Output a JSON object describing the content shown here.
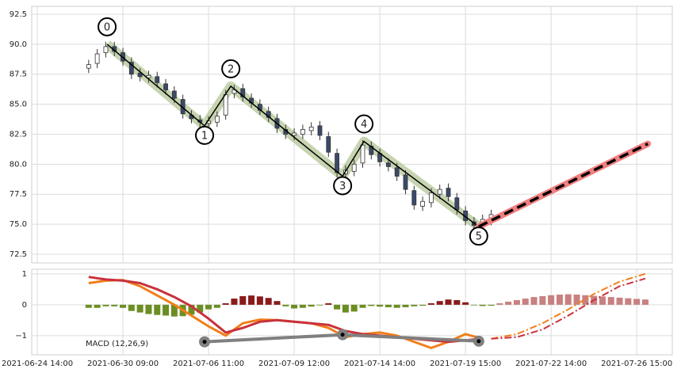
{
  "chart_data": [
    {
      "type": "candlestick",
      "xlim": [
        -1.3,
        148.3
      ],
      "ylim": [
        71.77,
        93.16
      ],
      "yticks": [
        72.5,
        {
          "value": 75,
          "label": "75.0"
        },
        77.5,
        {
          "value": 80,
          "label": "80.0"
        },
        82.5,
        {
          "value": 85,
          "label": "85.0"
        },
        87.5,
        {
          "value": 90,
          "label": "90.0"
        },
        92.5
      ],
      "grid": true,
      "x": [
        12,
        14,
        16,
        18,
        20,
        22,
        24,
        26,
        28,
        30,
        32,
        34,
        36,
        38,
        40,
        42,
        44,
        46,
        48,
        50,
        52,
        54,
        56,
        58,
        60,
        62,
        64,
        66,
        68,
        70,
        72,
        74,
        76,
        78,
        80,
        82,
        84,
        86,
        88,
        90,
        92,
        94,
        96,
        98,
        100,
        102,
        104,
        106
      ],
      "open": [
        88.0,
        88.4,
        89.3,
        89.8,
        89.3,
        88.5,
        87.6,
        87.2,
        87.3,
        86.7,
        86.1,
        85.4,
        84.1,
        83.7,
        83.4,
        83.5,
        84.1,
        85.9,
        86.3,
        85.5,
        85.0,
        84.4,
        83.8,
        82.9,
        82.4,
        82.5,
        82.8,
        83.2,
        82.3,
        80.9,
        79.2,
        79.4,
        80.1,
        81.5,
        80.9,
        80.1,
        79.7,
        79.1,
        77.8,
        76.5,
        76.8,
        77.5,
        78.0,
        77.2,
        76.1,
        75.2,
        74.8,
        75.3
      ],
      "high": [
        88.7,
        89.6,
        90.2,
        90.2,
        89.7,
        88.9,
        88.0,
        87.8,
        87.7,
        87.1,
        86.5,
        85.8,
        84.5,
        84.1,
        84.0,
        84.4,
        86.2,
        86.6,
        86.7,
        85.9,
        85.4,
        84.8,
        84.2,
        83.3,
        83.0,
        83.3,
        83.5,
        83.6,
        82.7,
        81.3,
        79.9,
        80.4,
        82.0,
        81.9,
        81.3,
        80.5,
        80.1,
        79.5,
        78.2,
        77.3,
        78.0,
        78.3,
        78.4,
        77.6,
        76.5,
        75.6,
        75.8,
        76.2
      ],
      "low": [
        87.6,
        88.0,
        88.9,
        89.0,
        88.2,
        87.1,
        86.9,
        86.8,
        86.4,
        85.8,
        85.1,
        83.8,
        83.4,
        83.1,
        83.0,
        83.1,
        83.7,
        85.5,
        85.2,
        84.7,
        84.1,
        83.5,
        82.6,
        82.1,
        82.0,
        82.1,
        82.4,
        82.0,
        80.6,
        78.9,
        78.8,
        79.0,
        79.7,
        80.4,
        79.8,
        79.4,
        78.6,
        77.5,
        76.2,
        76.1,
        76.4,
        77.1,
        76.9,
        75.8,
        74.9,
        74.5,
        74.4,
        74.9
      ],
      "close": [
        88.3,
        89.2,
        89.8,
        89.4,
        88.6,
        87.5,
        87.3,
        87.4,
        86.8,
        86.2,
        85.5,
        84.2,
        83.8,
        83.5,
        83.6,
        84.0,
        85.8,
        86.2,
        85.6,
        85.1,
        84.5,
        83.9,
        83.0,
        82.5,
        82.6,
        82.9,
        83.1,
        82.4,
        81.0,
        79.3,
        79.5,
        80.0,
        81.6,
        80.8,
        80.2,
        79.8,
        79.0,
        77.9,
        76.6,
        76.9,
        77.6,
        77.9,
        77.3,
        76.2,
        75.3,
        74.9,
        75.4,
        75.8
      ],
      "up_color": "#ffffff",
      "down_color": "#3b4a6b",
      "wave": {
        "x": [
          16.3,
          39.07,
          45.2,
          71.3,
          76.3,
          103.1
        ],
        "y": [
          90.0,
          83.2,
          86.5,
          79.0,
          81.9,
          74.8
        ],
        "labels": [
          "0",
          "1",
          "2",
          "3",
          "4",
          "5"
        ],
        "color": "#000000",
        "band_color": "#b8c99c"
      },
      "projection": {
        "x": [
          103.1,
          142.6
        ],
        "y": [
          74.8,
          81.7
        ],
        "color": "#000000",
        "band_color": "#f08080"
      }
    },
    {
      "type": "macd",
      "label": "MACD (12,26,9)",
      "xlim": [
        -1.3,
        148.3
      ],
      "ylim": [
        -1.62,
        1.15
      ],
      "yticks": [
        1,
        0,
        {
          "value": -1,
          "label": "−1"
        }
      ],
      "grid": true,
      "xticks": [
        {
          "value": 0,
          "label": "2021-06-24 14:00"
        },
        {
          "value": 20,
          "label": "2021-06-30 09:00"
        },
        {
          "value": 40,
          "label": "2021-07-06 11:00"
        },
        {
          "value": 60,
          "label": "2021-07-09 12:00"
        },
        {
          "value": 80,
          "label": "2021-07-14 14:00"
        },
        {
          "value": 100,
          "label": "2021-07-19 15:00"
        },
        {
          "value": 120,
          "label": "2021-07-22 14:00"
        },
        {
          "value": 140,
          "label": "2021-07-26 15:00"
        }
      ],
      "histogram": {
        "x": [
          12,
          14,
          16,
          18,
          20,
          22,
          24,
          26,
          28,
          30,
          32,
          34,
          36,
          38,
          40,
          42,
          44,
          46,
          48,
          50,
          52,
          54,
          56,
          58,
          60,
          62,
          64,
          66,
          68,
          70,
          72,
          74,
          76,
          78,
          80,
          82,
          84,
          86,
          88,
          90,
          92,
          94,
          96,
          98,
          100,
          102,
          104,
          106
        ],
        "values": [
          -0.1,
          -0.1,
          -0.05,
          -0.05,
          -0.1,
          -0.2,
          -0.25,
          -0.3,
          -0.33,
          -0.35,
          -0.38,
          -0.37,
          -0.32,
          -0.25,
          -0.15,
          -0.1,
          0.05,
          0.2,
          0.28,
          0.3,
          0.27,
          0.22,
          0.12,
          -0.05,
          -0.12,
          -0.1,
          -0.06,
          -0.02,
          0.05,
          -0.15,
          -0.25,
          -0.22,
          -0.1,
          -0.04,
          -0.06,
          -0.08,
          -0.1,
          -0.08,
          -0.05,
          -0.03,
          0.05,
          0.12,
          0.17,
          0.15,
          0.08,
          -0.02,
          -0.04,
          -0.03
        ],
        "pos_color": "#8b1a1a",
        "neg_color": "#6b8e23"
      },
      "histogram_projection": {
        "x": [
          108,
          110,
          112,
          114,
          116,
          118,
          120,
          122,
          124,
          126,
          128,
          130,
          132,
          134,
          136,
          138,
          140,
          142
        ],
        "values": [
          0.05,
          0.1,
          0.15,
          0.2,
          0.25,
          0.28,
          0.31,
          0.33,
          0.34,
          0.33,
          0.31,
          0.29,
          0.27,
          0.25,
          0.23,
          0.21,
          0.19,
          0.17
        ],
        "color": "#c98080"
      },
      "macd": {
        "x": [
          12,
          16,
          20,
          24,
          28,
          32,
          36,
          40,
          44,
          48,
          52,
          56,
          60,
          64,
          68,
          72,
          76,
          80,
          84,
          88,
          92,
          96,
          100,
          104
        ],
        "values": [
          0.7,
          0.78,
          0.8,
          0.6,
          0.3,
          0.0,
          -0.35,
          -0.7,
          -1.0,
          -0.6,
          -0.48,
          -0.5,
          -0.55,
          -0.6,
          -0.75,
          -1.05,
          -0.95,
          -0.9,
          -1.0,
          -1.2,
          -1.4,
          -1.2,
          -0.95,
          -1.1
        ],
        "color": "#f07f1a"
      },
      "signal": {
        "x": [
          12,
          16,
          20,
          24,
          28,
          32,
          36,
          40,
          44,
          48,
          52,
          56,
          60,
          64,
          68,
          72,
          76,
          80,
          84,
          88,
          92,
          96,
          100,
          104
        ],
        "values": [
          0.9,
          0.82,
          0.78,
          0.7,
          0.5,
          0.25,
          -0.05,
          -0.45,
          -0.9,
          -0.75,
          -0.55,
          -0.5,
          -0.55,
          -0.6,
          -0.65,
          -0.85,
          -0.95,
          -1.0,
          -1.05,
          -1.1,
          -1.15,
          -1.2,
          -1.15,
          -1.1
        ],
        "color": "#c8323c"
      },
      "macd_projection": {
        "x": [
          106,
          112,
          118,
          124,
          130,
          136,
          142
        ],
        "values": [
          -1.1,
          -0.95,
          -0.6,
          -0.15,
          0.35,
          0.75,
          1.0
        ],
        "color": "#f07f1a"
      },
      "signal_projection": {
        "x": [
          106,
          112,
          118,
          124,
          130,
          136,
          142
        ],
        "values": [
          -1.1,
          -1.05,
          -0.8,
          -0.35,
          0.15,
          0.6,
          0.85
        ],
        "color": "#c8323c"
      },
      "wave": {
        "x": [
          39.07,
          71.3,
          103.1
        ],
        "values": [
          -1.2,
          -0.97,
          -1.18
        ],
        "color": "#808080"
      }
    }
  ]
}
